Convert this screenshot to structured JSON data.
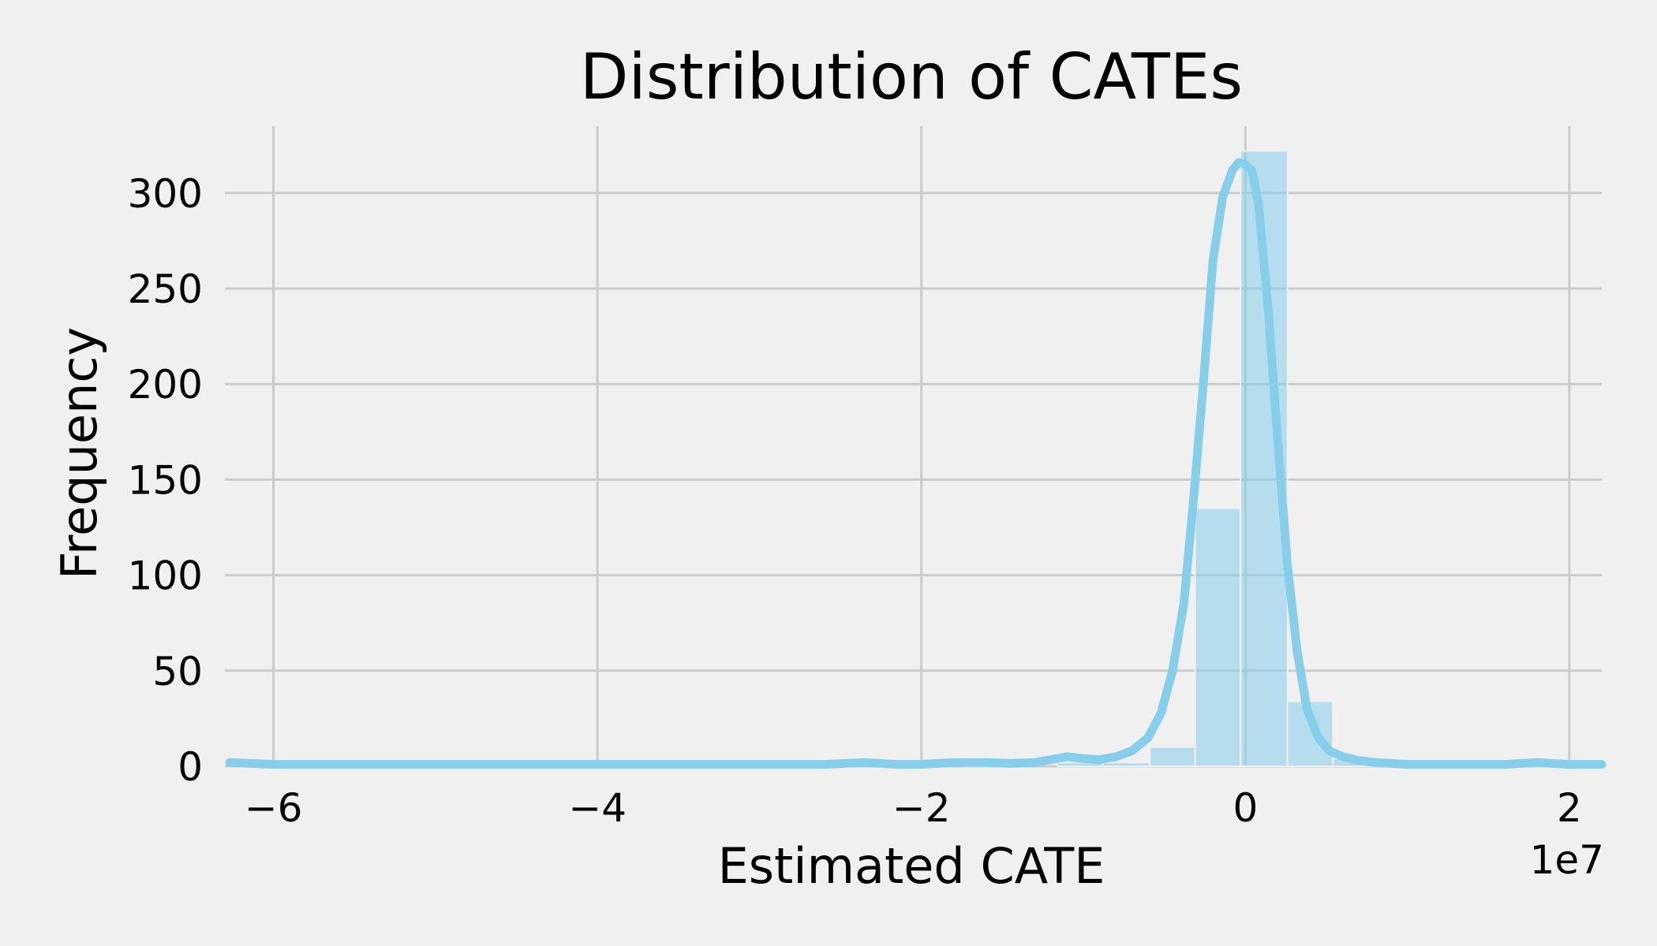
{
  "chart_data": {
    "type": "bar",
    "title": "Distribution of CATEs",
    "xlabel": "Estimated CATE",
    "ylabel": "Frequency",
    "x_offset_label": "1e7",
    "xlim": [
      -6.3,
      2.2
    ],
    "ylim": [
      0,
      335
    ],
    "x_ticks": [
      -6,
      -4,
      -2,
      0,
      2
    ],
    "x_tick_labels": [
      "−6",
      "−4",
      "−2",
      "0",
      "2"
    ],
    "y_ticks": [
      0,
      50,
      100,
      150,
      200,
      250,
      300
    ],
    "y_tick_labels": [
      "0",
      "50",
      "100",
      "150",
      "200",
      "250",
      "300"
    ],
    "grid": true,
    "bar_color": "#87ceeb",
    "histogram": {
      "bin_edges": [
        -6.27,
        -5.99,
        -5.7,
        -5.42,
        -5.13,
        -4.85,
        -4.57,
        -4.28,
        -4.0,
        -3.72,
        -3.43,
        -3.15,
        -2.86,
        -2.58,
        -2.3,
        -2.01,
        -1.73,
        -1.45,
        -1.16,
        -0.88,
        -0.59,
        -0.31,
        -0.03,
        0.26,
        0.54,
        0.82,
        1.11,
        1.39,
        1.68,
        1.96,
        2.24
      ],
      "counts": [
        1,
        0,
        0,
        0,
        0,
        0,
        0,
        0,
        0,
        0,
        0,
        0,
        0,
        0,
        1,
        0,
        1,
        0,
        2,
        2,
        10,
        135,
        322,
        34,
        4,
        1,
        0,
        0,
        1,
        1
      ]
    },
    "kde_series": {
      "name": "",
      "x": [
        -6.27,
        -6.0,
        -5.0,
        -4.0,
        -3.0,
        -2.6,
        -2.35,
        -2.15,
        -2.0,
        -1.8,
        -1.6,
        -1.45,
        -1.3,
        -1.2,
        -1.1,
        -1.0,
        -0.9,
        -0.8,
        -0.7,
        -0.6,
        -0.52,
        -0.45,
        -0.38,
        -0.32,
        -0.26,
        -0.2,
        -0.14,
        -0.08,
        -0.04,
        0.0,
        0.04,
        0.08,
        0.14,
        0.2,
        0.26,
        0.32,
        0.38,
        0.45,
        0.52,
        0.6,
        0.7,
        0.8,
        0.9,
        1.0,
        1.2,
        1.4,
        1.6,
        1.8,
        2.0,
        2.2
      ],
      "y": [
        2,
        1,
        1,
        1,
        1,
        1,
        2,
        1,
        1,
        2,
        2,
        1.5,
        2,
        3.5,
        5,
        4,
        3.5,
        5,
        8,
        15,
        28,
        50,
        85,
        140,
        200,
        265,
        298,
        312,
        316,
        315,
        312,
        295,
        240,
        170,
        105,
        60,
        30,
        15,
        8,
        5,
        3,
        2,
        1.5,
        1,
        1,
        1,
        1,
        2,
        1,
        1
      ]
    }
  }
}
